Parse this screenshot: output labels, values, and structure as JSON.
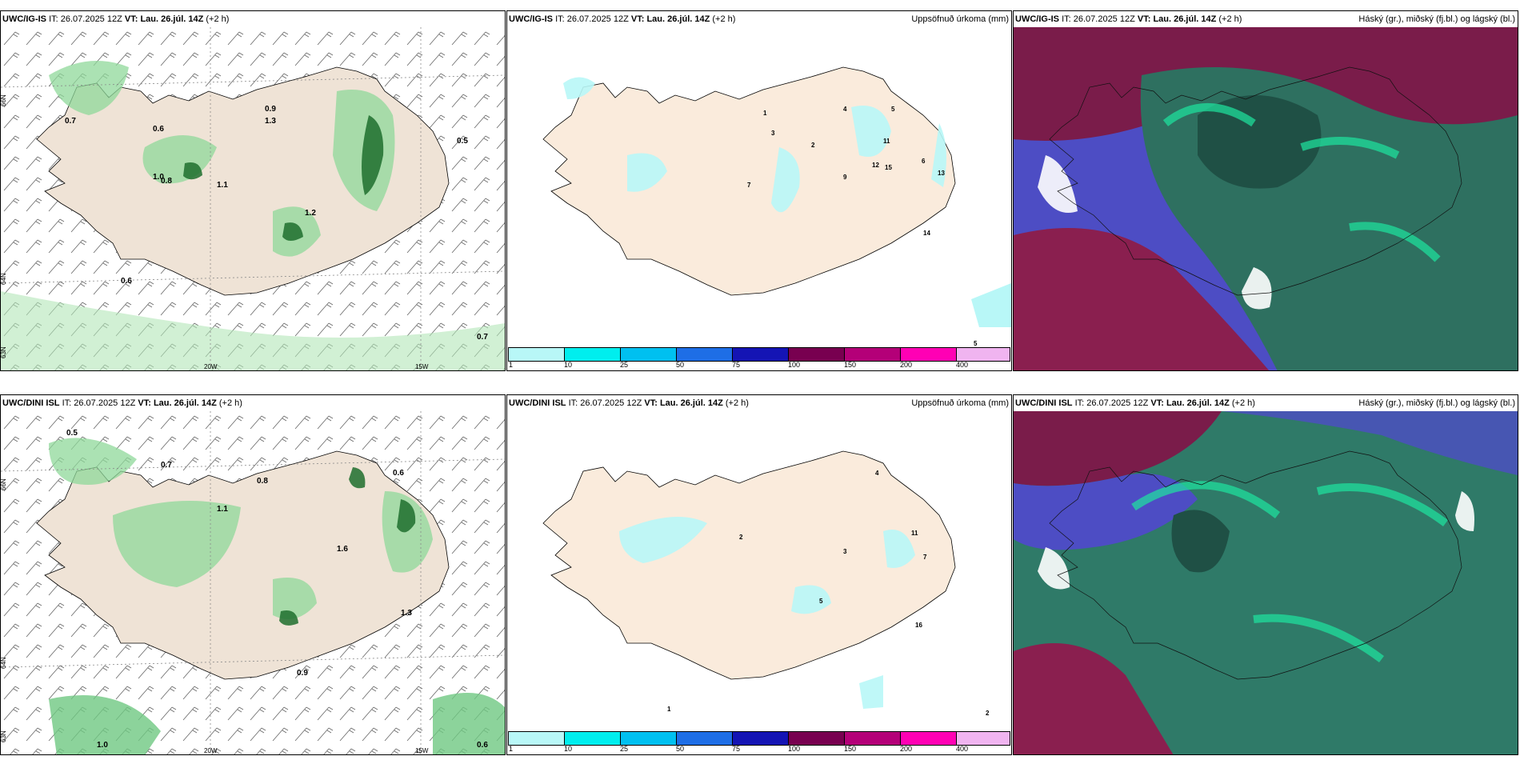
{
  "panels": [
    {
      "model": "UWC/IG-IS",
      "it_label": "IT:",
      "it_value": "26.07.2025 12Z",
      "vt_label": "VT:",
      "vt_value": "Lau. 26.júl. 14Z",
      "offset": "(+2 h)",
      "right_label": ""
    },
    {
      "model": "UWC/IG-IS",
      "it_label": "IT:",
      "it_value": "26.07.2025 12Z",
      "vt_label": "VT:",
      "vt_value": "Lau. 26.júl. 14Z",
      "offset": "(+2 h)",
      "right_label": "Uppsöfnuð úrkoma (mm)"
    },
    {
      "model": "UWC/IG-IS",
      "it_label": "IT:",
      "it_value": "26.07.2025 12Z",
      "vt_label": "VT:",
      "vt_value": "Lau. 26.júl. 14Z",
      "offset": "(+2 h)",
      "right_label": "Háský (gr.), miðský (fj.bl.) og lágský (bl.)"
    },
    {
      "model": "UWC/DINI ISL",
      "it_label": "IT:",
      "it_value": "26.07.2025 12Z",
      "vt_label": "VT:",
      "vt_value": "Lau. 26.júl. 14Z",
      "offset": "(+2 h)",
      "right_label": ""
    },
    {
      "model": "UWC/DINI ISL",
      "it_label": "IT:",
      "it_value": "26.07.2025 12Z",
      "vt_label": "VT:",
      "vt_value": "Lau. 26.júl. 14Z",
      "offset": "(+2 h)",
      "right_label": "Uppsöfnuð úrkoma (mm)"
    },
    {
      "model": "UWC/DINI ISL",
      "it_label": "IT:",
      "it_value": "26.07.2025 12Z",
      "vt_label": "VT:",
      "vt_value": "Lau. 26.júl. 14Z",
      "offset": "(+2 h)",
      "right_label": "Háský (gr.), miðský (fj.bl.) og lágský (bl.)"
    }
  ],
  "graticule": {
    "lat_66": "66N",
    "lat_64": "64N",
    "lat_63": "63N",
    "lon_20": "20W",
    "lon_15": "15W"
  },
  "legend": {
    "ticks": [
      "1",
      "10",
      "25",
      "50",
      "75",
      "100",
      "150",
      "200",
      "400"
    ],
    "colors": [
      "#b8f7f7",
      "#00eeee",
      "#00c0f0",
      "#1e6ee6",
      "#1414b4",
      "#780050",
      "#b40078",
      "#ff00b4",
      "#f0b4f0"
    ]
  },
  "precip_labels_top": [
    "1",
    "2",
    "3",
    "4",
    "5",
    "6",
    "7",
    "9",
    "11",
    "12",
    "13",
    "14",
    "15"
  ],
  "precip_labels_bottom": [
    "1",
    "2",
    "3",
    "4",
    "5",
    "7",
    "11",
    "16"
  ],
  "showers_labels_top": [
    "0.5",
    "0.6",
    "0.7",
    "0.8",
    "0.9",
    "1.0",
    "1.1",
    "1.2",
    "1.3"
  ],
  "showers_labels_bottom": [
    "0.5",
    "0.6",
    "0.7",
    "0.8",
    "0.9",
    "1.0",
    "1.1",
    "1.3",
    "1.6"
  ]
}
